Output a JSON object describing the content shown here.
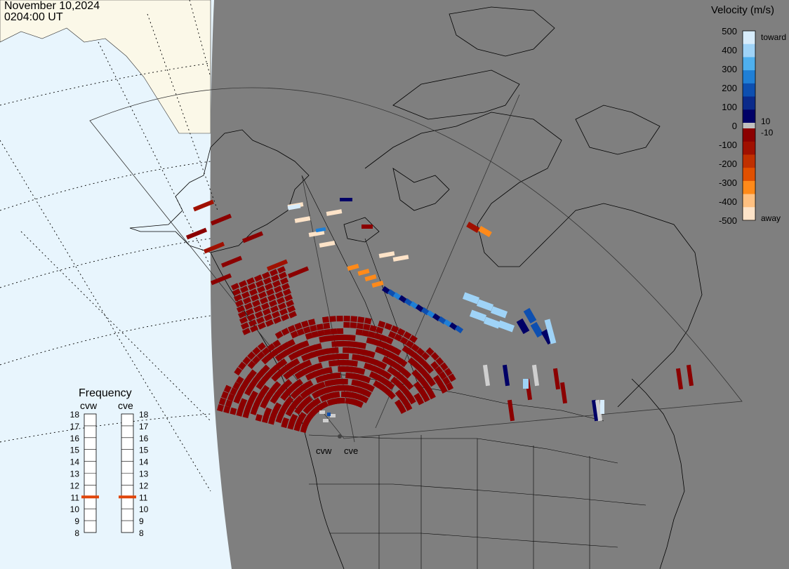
{
  "header": {
    "date": "November 10,2024",
    "time": "0204:00 UT"
  },
  "colorbar": {
    "title": "Velocity (m/s)",
    "ticks": [
      "500",
      "400",
      "300",
      "200",
      "100",
      "0",
      "-100",
      "-200",
      "-300",
      "-400",
      "-500"
    ],
    "label_toward": "toward",
    "label_away": "away",
    "label_pos_threshold": "10",
    "label_neg_threshold": "-10",
    "colors": [
      "#d7ecfb",
      "#9fd3f7",
      "#4fb0ee",
      "#1f7fd6",
      "#0d4fb0",
      "#0a2a8a",
      "#000066",
      "#8b0000",
      "#a01000",
      "#c03000",
      "#e05000",
      "#ff8a1a",
      "#ffc080",
      "#fde3c8"
    ]
  },
  "frequency_panel": {
    "title": "Frequency",
    "radars": [
      {
        "name": "cvw",
        "selected_mhz": 11
      },
      {
        "name": "cve",
        "selected_mhz": 11
      }
    ],
    "scale": [
      "18",
      "17",
      "16",
      "15",
      "14",
      "13",
      "12",
      "11",
      "10",
      "9",
      "8"
    ],
    "marker_color": "#e0450a"
  },
  "map": {
    "site_labels": [
      "cvw",
      "cve"
    ],
    "background_color": "#7f7f7f",
    "ocean_color": "#e8f5fd",
    "land_outside_color": "#fbf8e8"
  },
  "icons": [
    "radar-site-icon"
  ]
}
